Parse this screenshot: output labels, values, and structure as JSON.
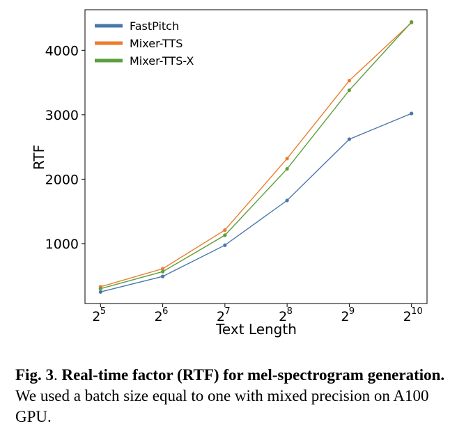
{
  "chart_data": {
    "type": "line",
    "xlabel": "Text Length",
    "ylabel": "RTF",
    "x": [
      32,
      64,
      128,
      256,
      512,
      1024
    ],
    "x_tick_labels": [
      {
        "base": "2",
        "exp": "5"
      },
      {
        "base": "2",
        "exp": "6"
      },
      {
        "base": "2",
        "exp": "7"
      },
      {
        "base": "2",
        "exp": "8"
      },
      {
        "base": "2",
        "exp": "9"
      },
      {
        "base": "2",
        "exp": "10"
      }
    ],
    "x_scale": "log2",
    "y_ticks": [
      1000,
      2000,
      3000,
      4000
    ],
    "y_tick_labels": [
      "1000",
      "2000",
      "3000",
      "4000"
    ],
    "ylim": [
      70,
      4630
    ],
    "grid": false,
    "legend_position": "top-left",
    "series": [
      {
        "name": "FastPitch",
        "color": "#4a77ab",
        "values": [
          250,
          490,
          975,
          1670,
          2620,
          3020
        ]
      },
      {
        "name": "Mixer-TTS",
        "color": "#ea7d2e",
        "values": [
          330,
          610,
          1210,
          2320,
          3530,
          4430
        ]
      },
      {
        "name": "Mixer-TTS-X",
        "color": "#5c9f3d",
        "values": [
          300,
          565,
          1130,
          2160,
          3380,
          4440
        ]
      }
    ]
  },
  "caption": {
    "fig_label": "Fig. 3",
    "separator": ".",
    "bold_text": "Real-time factor (RTF) for mel-spectrogram generation.",
    "rest_text": " We used a batch size equal to one with mixed precision on A100 GPU."
  }
}
